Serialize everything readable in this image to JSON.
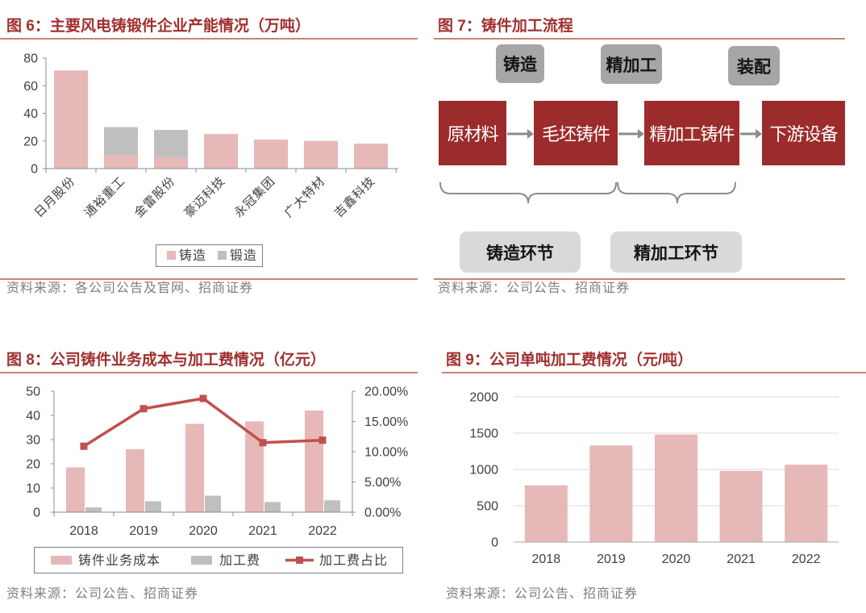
{
  "colors": {
    "title": "#A0302F",
    "rule": "#C98374",
    "casting_pink": "#E6B8B7",
    "forging_gray": "#BFBFBF",
    "ratio_line": "#C0504D",
    "node_red": "#9C2C2C",
    "step_gray": "#A6A6A6",
    "stage_gray": "#D9D9D9"
  },
  "diagram": {
    "title": "图 7：铸件加工流程",
    "steps": [
      "铸造",
      "精加工",
      "装配"
    ],
    "nodes": [
      "原材料",
      "毛坯铸件",
      "精加工铸件",
      "下游设备"
    ],
    "stages": [
      "铸造环节",
      "精加工环节"
    ],
    "source": "资料来源：公司公告、招商证券"
  },
  "chart_data": [
    {
      "type": "bar",
      "stacked": true,
      "title": "图 6：主要风电铸锻件企业产能情况（万吨）",
      "categories": [
        "日月股份",
        "通裕重工",
        "金雷股份",
        "豪迈科技",
        "永冠集团",
        "广大特材",
        "吉鑫科技"
      ],
      "series": [
        {
          "name": "铸造",
          "values": [
            71,
            10,
            8,
            25,
            21,
            20,
            18
          ],
          "color": "#E6B8B7"
        },
        {
          "name": "锻造",
          "values": [
            0,
            20,
            20,
            0,
            0,
            0,
            0
          ],
          "color": "#BFBFBF"
        }
      ],
      "xlabel": "",
      "ylabel": "",
      "ylim": [
        0,
        80
      ],
      "yticks": [
        0,
        20,
        40,
        60,
        80
      ],
      "grid": false,
      "legend": "bottom",
      "source": "资料来源：各公司公告及官网、招商证券"
    },
    {
      "type": "bar",
      "title": "图 8：公司铸件业务成本与加工费情况（亿元）",
      "categories": [
        "2018",
        "2019",
        "2020",
        "2021",
        "2022"
      ],
      "series": [
        {
          "name": "铸件业务成本",
          "values": [
            18.5,
            26,
            36.5,
            37.5,
            42
          ],
          "color": "#E6B8B7"
        },
        {
          "name": "加工费",
          "values": [
            2,
            4.5,
            6.8,
            4.2,
            4.9
          ],
          "color": "#BFBFBF"
        }
      ],
      "secondary": {
        "type": "line",
        "series": [
          {
            "name": "加工费占比",
            "values": [
              0.109,
              0.171,
              0.188,
              0.115,
              0.119
            ],
            "color": "#C0504D"
          }
        ],
        "ylim": [
          0,
          0.2
        ],
        "yticks": [
          0,
          0.05,
          0.1,
          0.15,
          0.2
        ],
        "ytick_labels": [
          "0.00%",
          "5.00%",
          "10.00%",
          "15.00%",
          "20.00%"
        ]
      },
      "xlabel": "",
      "ylabel": "",
      "ylim": [
        0,
        50
      ],
      "yticks": [
        0,
        10,
        20,
        30,
        40,
        50
      ],
      "grid": false,
      "legend": "bottom",
      "source": "资料来源：公司公告、招商证券"
    },
    {
      "type": "bar",
      "title": "图 9：公司单吨加工费情况（元/吨）",
      "categories": [
        "2018",
        "2019",
        "2020",
        "2021",
        "2022"
      ],
      "values": [
        780,
        1330,
        1480,
        980,
        1065
      ],
      "color": "#E6B8B7",
      "xlabel": "",
      "ylabel": "",
      "ylim": [
        0,
        2000
      ],
      "yticks": [
        0,
        500,
        1000,
        1500,
        2000
      ],
      "grid": true,
      "source": "资料来源：公司公告、招商证券"
    }
  ]
}
